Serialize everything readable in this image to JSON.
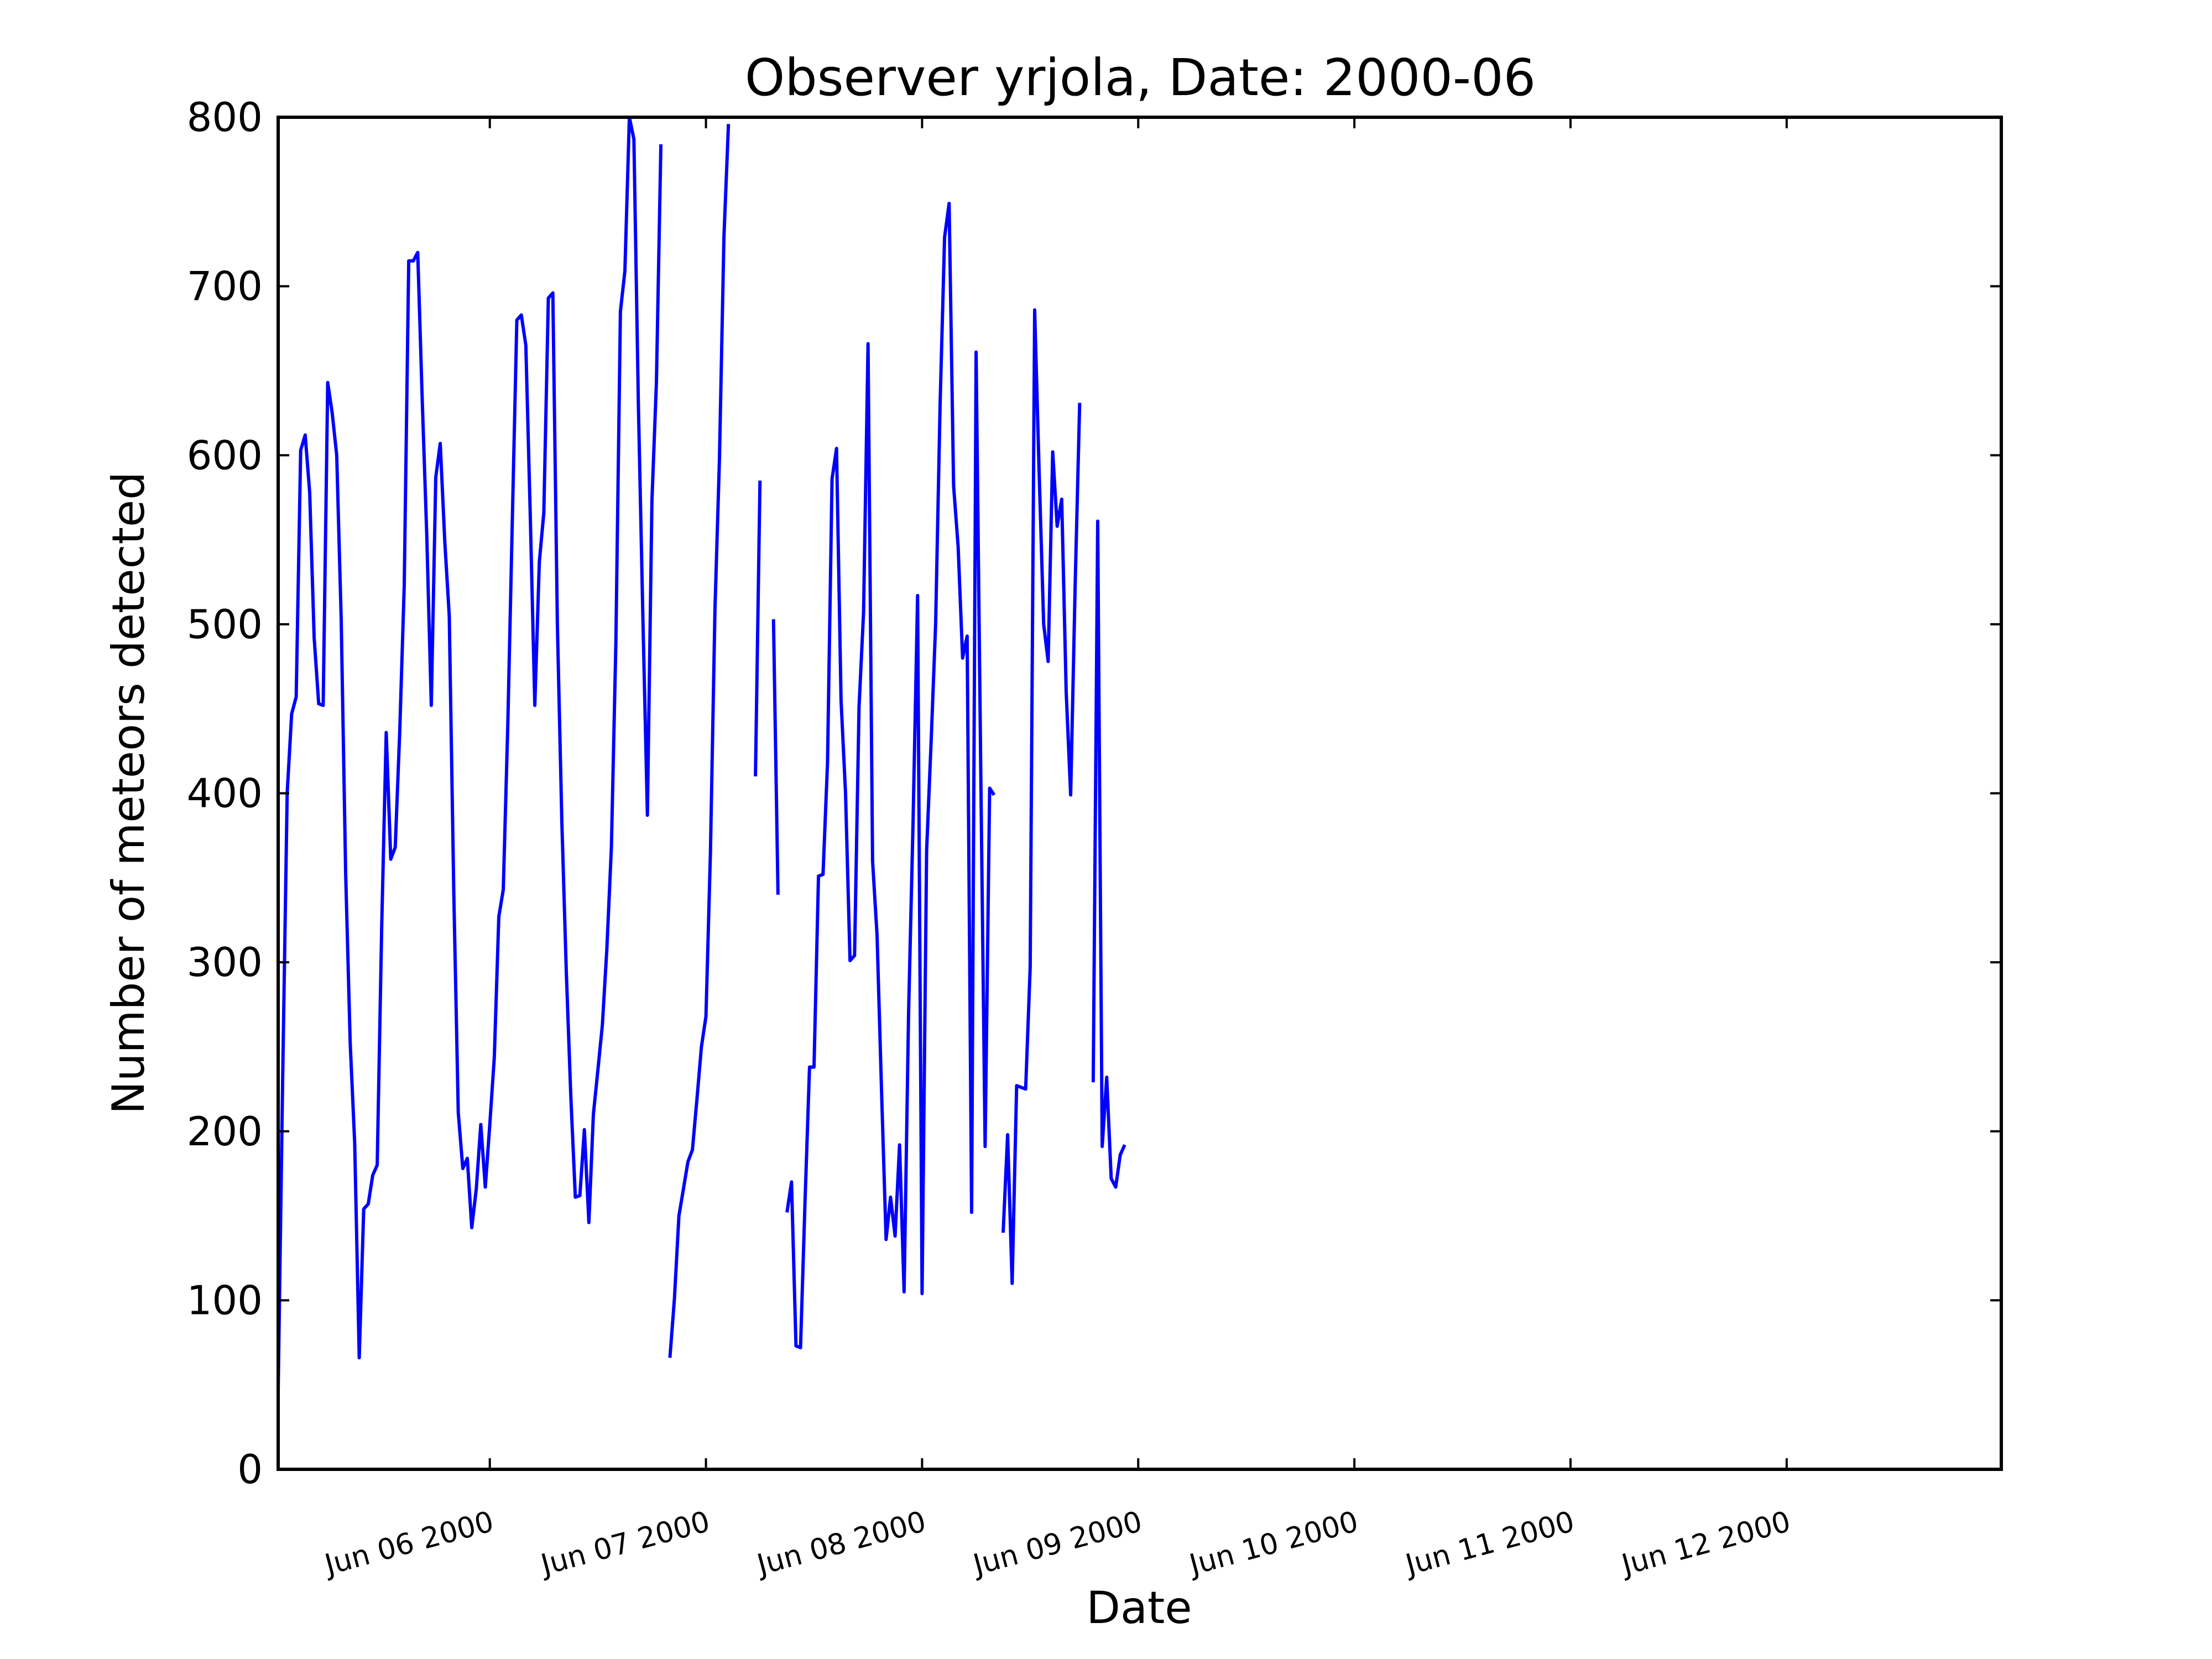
{
  "chart_data": {
    "type": "line",
    "title": "Observer yrjola, Date: 2000-06",
    "xlabel": "Date",
    "ylabel": "Number of meteors detected",
    "ylim": [
      0,
      800
    ],
    "yticks": [
      0,
      100,
      200,
      300,
      400,
      500,
      600,
      700,
      800
    ],
    "xlim": [
      "2000-06-05 00:30",
      "2000-06-12 23:50"
    ],
    "xticks": [
      {
        "at": "2000-06-06",
        "label": "Jun 06 2000"
      },
      {
        "at": "2000-06-07",
        "label": "Jun 07 2000"
      },
      {
        "at": "2000-06-08",
        "label": "Jun 08 2000"
      },
      {
        "at": "2000-06-09",
        "label": "Jun 09 2000"
      },
      {
        "at": "2000-06-10",
        "label": "Jun 10 2000"
      },
      {
        "at": "2000-06-11",
        "label": "Jun 11 2000"
      },
      {
        "at": "2000-06-12",
        "label": "Jun 12 2000"
      }
    ],
    "grid": false,
    "legend": "none",
    "line_color": "#0000ff",
    "series": [
      {
        "segments": [
          [
            [
              "2000-06-05 00:30",
              45
            ],
            [
              "2000-06-05 01:00",
              230
            ],
            [
              "2000-06-05 01:30",
              400
            ],
            [
              "2000-06-05 02:00",
              447
            ],
            [
              "2000-06-05 02:30",
              457
            ],
            [
              "2000-06-05 03:00",
              603
            ],
            [
              "2000-06-05 03:30",
              612
            ],
            [
              "2000-06-05 04:00",
              578
            ],
            [
              "2000-06-05 04:30",
              492
            ],
            [
              "2000-06-05 05:00",
              453
            ],
            [
              "2000-06-05 05:30",
              452
            ],
            [
              "2000-06-05 06:00",
              643
            ],
            [
              "2000-06-05 06:30",
              625
            ],
            [
              "2000-06-05 07:00",
              600
            ],
            [
              "2000-06-05 07:30",
              503
            ],
            [
              "2000-06-05 08:00",
              352
            ],
            [
              "2000-06-05 08:30",
              252
            ],
            [
              "2000-06-05 09:00",
              193
            ],
            [
              "2000-06-05 09:30",
              66
            ],
            [
              "2000-06-05 10:00",
              154
            ],
            [
              "2000-06-05 10:30",
              157
            ],
            [
              "2000-06-05 11:00",
              174
            ],
            [
              "2000-06-05 11:30",
              180
            ],
            [
              "2000-06-05 12:00",
              322
            ],
            [
              "2000-06-05 12:30",
              436
            ],
            [
              "2000-06-05 13:00",
              361
            ],
            [
              "2000-06-05 13:30",
              368
            ],
            [
              "2000-06-05 14:00",
              437
            ],
            [
              "2000-06-05 14:30",
              523
            ],
            [
              "2000-06-05 15:00",
              715
            ],
            [
              "2000-06-05 15:30",
              715
            ],
            [
              "2000-06-05 16:00",
              720
            ],
            [
              "2000-06-05 16:30",
              632
            ],
            [
              "2000-06-05 17:00",
              553
            ],
            [
              "2000-06-05 17:30",
              452
            ],
            [
              "2000-06-05 18:00",
              587
            ],
            [
              "2000-06-05 18:30",
              607
            ],
            [
              "2000-06-05 19:00",
              549
            ],
            [
              "2000-06-05 19:30",
              505
            ],
            [
              "2000-06-05 20:00",
              341
            ],
            [
              "2000-06-05 20:30",
              211
            ],
            [
              "2000-06-05 21:00",
              178
            ],
            [
              "2000-06-05 21:30",
              184
            ],
            [
              "2000-06-05 22:00",
              143
            ],
            [
              "2000-06-05 22:30",
              166
            ],
            [
              "2000-06-05 23:00",
              204
            ],
            [
              "2000-06-05 23:30",
              167
            ],
            [
              "2000-06-06 00:00",
              204
            ],
            [
              "2000-06-06 00:30",
              244
            ],
            [
              "2000-06-06 01:00",
              327
            ],
            [
              "2000-06-06 01:30",
              343
            ],
            [
              "2000-06-06 02:00",
              441
            ],
            [
              "2000-06-06 02:30",
              561
            ],
            [
              "2000-06-06 03:00",
              680
            ],
            [
              "2000-06-06 03:30",
              683
            ],
            [
              "2000-06-06 04:00",
              665
            ],
            [
              "2000-06-06 04:30",
              563
            ],
            [
              "2000-06-06 05:00",
              452
            ],
            [
              "2000-06-06 05:30",
              537
            ],
            [
              "2000-06-06 06:00",
              566
            ],
            [
              "2000-06-06 06:30",
              693
            ],
            [
              "2000-06-06 07:00",
              696
            ],
            [
              "2000-06-06 07:30",
              500
            ],
            [
              "2000-06-06 08:00",
              383
            ],
            [
              "2000-06-06 08:30",
              294
            ],
            [
              "2000-06-06 09:00",
              220
            ],
            [
              "2000-06-06 09:30",
              161
            ],
            [
              "2000-06-06 10:00",
              162
            ],
            [
              "2000-06-06 10:30",
              201
            ],
            [
              "2000-06-06 11:00",
              146
            ],
            [
              "2000-06-06 11:30",
              210
            ],
            [
              "2000-06-06 12:00",
              236
            ],
            [
              "2000-06-06 12:30",
              263
            ],
            [
              "2000-06-06 13:00",
              308
            ],
            [
              "2000-06-06 13:30",
              368
            ],
            [
              "2000-06-06 14:00",
              489
            ],
            [
              "2000-06-06 14:30",
              685
            ],
            [
              "2000-06-06 15:00",
              709
            ],
            [
              "2000-06-06 15:30",
              800
            ],
            [
              "2000-06-06 16:00",
              787
            ],
            [
              "2000-06-06 16:30",
              630
            ],
            [
              "2000-06-06 17:00",
              503
            ],
            [
              "2000-06-06 17:30",
              387
            ],
            [
              "2000-06-06 18:00",
              573
            ],
            [
              "2000-06-06 18:30",
              643
            ],
            [
              "2000-06-06 19:00",
              784
            ]
          ],
          [
            [
              "2000-06-06 20:00",
              66
            ],
            [
              "2000-06-06 20:30",
              101
            ],
            [
              "2000-06-06 21:00",
              150
            ],
            [
              "2000-06-06 21:30",
              166
            ],
            [
              "2000-06-06 22:00",
              182
            ],
            [
              "2000-06-06 22:30",
              189
            ],
            [
              "2000-06-06 23:00",
              219
            ],
            [
              "2000-06-06 23:30",
              250
            ],
            [
              "2000-06-07 00:00",
              268
            ],
            [
              "2000-06-07 00:30",
              365
            ],
            [
              "2000-06-07 01:00",
              509
            ],
            [
              "2000-06-07 01:30",
              598
            ],
            [
              "2000-06-07 02:00",
              729
            ],
            [
              "2000-06-07 02:30",
              796
            ]
          ],
          [
            [
              "2000-06-07 05:30",
              410
            ],
            [
              "2000-06-07 06:00",
              585
            ]
          ],
          [
            [
              "2000-06-07 07:30",
              503
            ],
            [
              "2000-06-07 08:00",
              340
            ]
          ],
          [
            [
              "2000-06-07 09:00",
              152
            ],
            [
              "2000-06-07 09:30",
              170
            ],
            [
              "2000-06-07 10:00",
              73
            ],
            [
              "2000-06-07 10:30",
              72
            ],
            [
              "2000-06-07 11:00",
              158
            ],
            [
              "2000-06-07 11:30",
              238
            ],
            [
              "2000-06-07 12:00",
              238
            ],
            [
              "2000-06-07 12:30",
              351
            ],
            [
              "2000-06-07 13:00",
              352
            ],
            [
              "2000-06-07 13:30",
              418
            ],
            [
              "2000-06-07 14:00",
              586
            ],
            [
              "2000-06-07 14:30",
              604
            ],
            [
              "2000-06-07 15:00",
              455
            ],
            [
              "2000-06-07 15:30",
              400
            ],
            [
              "2000-06-07 16:00",
              301
            ],
            [
              "2000-06-07 16:30",
              304
            ],
            [
              "2000-06-07 17:00",
              451
            ],
            [
              "2000-06-07 17:30",
              507
            ],
            [
              "2000-06-07 18:00",
              666
            ],
            [
              "2000-06-07 18:30",
              360
            ],
            [
              "2000-06-07 19:00",
              316
            ],
            [
              "2000-06-07 19:30",
              224
            ],
            [
              "2000-06-07 20:00",
              136
            ],
            [
              "2000-06-07 20:30",
              161
            ],
            [
              "2000-06-07 21:00",
              138
            ],
            [
              "2000-06-07 21:30",
              192
            ],
            [
              "2000-06-07 22:00",
              105
            ],
            [
              "2000-06-07 22:30",
              270
            ],
            [
              "2000-06-07 23:00",
              383
            ],
            [
              "2000-06-07 23:30",
              517
            ],
            [
              "2000-06-08 00:00",
              104
            ],
            [
              "2000-06-08 00:30",
              366
            ],
            [
              "2000-06-08 01:00",
              430
            ],
            [
              "2000-06-08 01:30",
              500
            ],
            [
              "2000-06-08 02:00",
              630
            ],
            [
              "2000-06-08 02:30",
              729
            ],
            [
              "2000-06-08 03:00",
              749
            ],
            [
              "2000-06-08 03:30",
              582
            ],
            [
              "2000-06-08 04:00",
              546
            ],
            [
              "2000-06-08 04:30",
              480
            ],
            [
              "2000-06-08 05:00",
              493
            ],
            [
              "2000-06-08 05:30",
              152
            ],
            [
              "2000-06-08 06:00",
              661
            ],
            [
              "2000-06-08 06:30",
              420
            ],
            [
              "2000-06-08 07:00",
              191
            ],
            [
              "2000-06-08 07:30",
              403
            ],
            [
              "2000-06-08 08:00",
              399
            ]
          ],
          [
            [
              "2000-06-08 09:00",
              140
            ],
            [
              "2000-06-08 09:30",
              198
            ],
            [
              "2000-06-08 10:00",
              110
            ],
            [
              "2000-06-08 10:30",
              227
            ],
            [
              "2000-06-08 11:00",
              226
            ],
            [
              "2000-06-08 11:30",
              225
            ],
            [
              "2000-06-08 12:00",
              297
            ],
            [
              "2000-06-08 12:30",
              686
            ],
            [
              "2000-06-08 13:00",
              590
            ],
            [
              "2000-06-08 13:30",
              500
            ],
            [
              "2000-06-08 14:00",
              478
            ],
            [
              "2000-06-08 14:30",
              602
            ],
            [
              "2000-06-08 15:00",
              558
            ],
            [
              "2000-06-08 15:30",
              574
            ],
            [
              "2000-06-08 16:00",
              460
            ],
            [
              "2000-06-08 16:30",
              399
            ],
            [
              "2000-06-08 17:00",
              524
            ],
            [
              "2000-06-08 17:30",
              631
            ]
          ],
          [
            [
              "2000-06-08 19:00",
              229
            ],
            [
              "2000-06-08 19:30",
              561
            ],
            [
              "2000-06-08 20:00",
              191
            ],
            [
              "2000-06-08 20:30",
              232
            ],
            [
              "2000-06-08 21:00",
              172
            ],
            [
              "2000-06-08 21:30",
              167
            ],
            [
              "2000-06-08 22:00",
              186
            ],
            [
              "2000-06-08 22:30",
              192
            ]
          ]
        ]
      }
    ]
  }
}
